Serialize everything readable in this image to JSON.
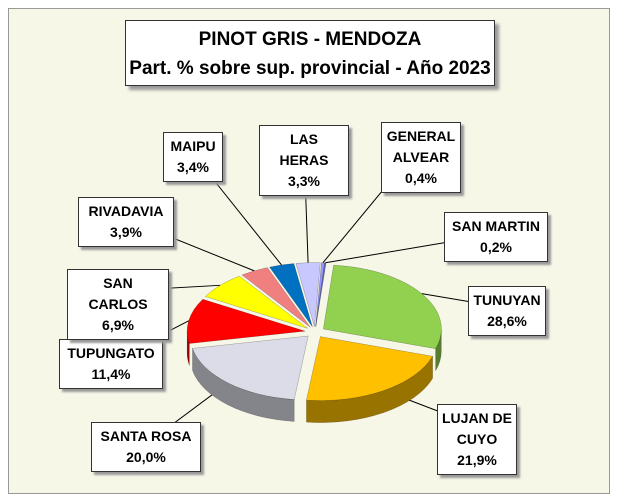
{
  "chart_data": {
    "type": "pie",
    "title": "PINOT GRIS - MENDOZA",
    "subtitle": "Part. % sobre sup. provincial - Año 2023",
    "categories": [
      "TUNUYAN",
      "LUJAN DE CUYO",
      "SANTA ROSA",
      "TUPUNGATO",
      "SAN CARLOS",
      "RIVADAVIA",
      "MAIPU",
      "LAS HERAS",
      "GENERAL ALVEAR",
      "SAN MARTIN"
    ],
    "values": [
      28.6,
      21.9,
      20.0,
      11.4,
      6.9,
      3.9,
      3.4,
      3.3,
      0.4,
      0.2
    ],
    "value_labels": [
      "28,6%",
      "21,9%",
      "20,0%",
      "11,4%",
      "6,9%",
      "3,9%",
      "3,4%",
      "3,3%",
      "0,4%",
      "0,2%"
    ],
    "colors": [
      "#92d050",
      "#ffc000",
      "#dcdce8",
      "#ff0000",
      "#ffff00",
      "#f08080",
      "#0070c0",
      "#c8c8ff",
      "#9999ff",
      "#6666cc"
    ]
  }
}
